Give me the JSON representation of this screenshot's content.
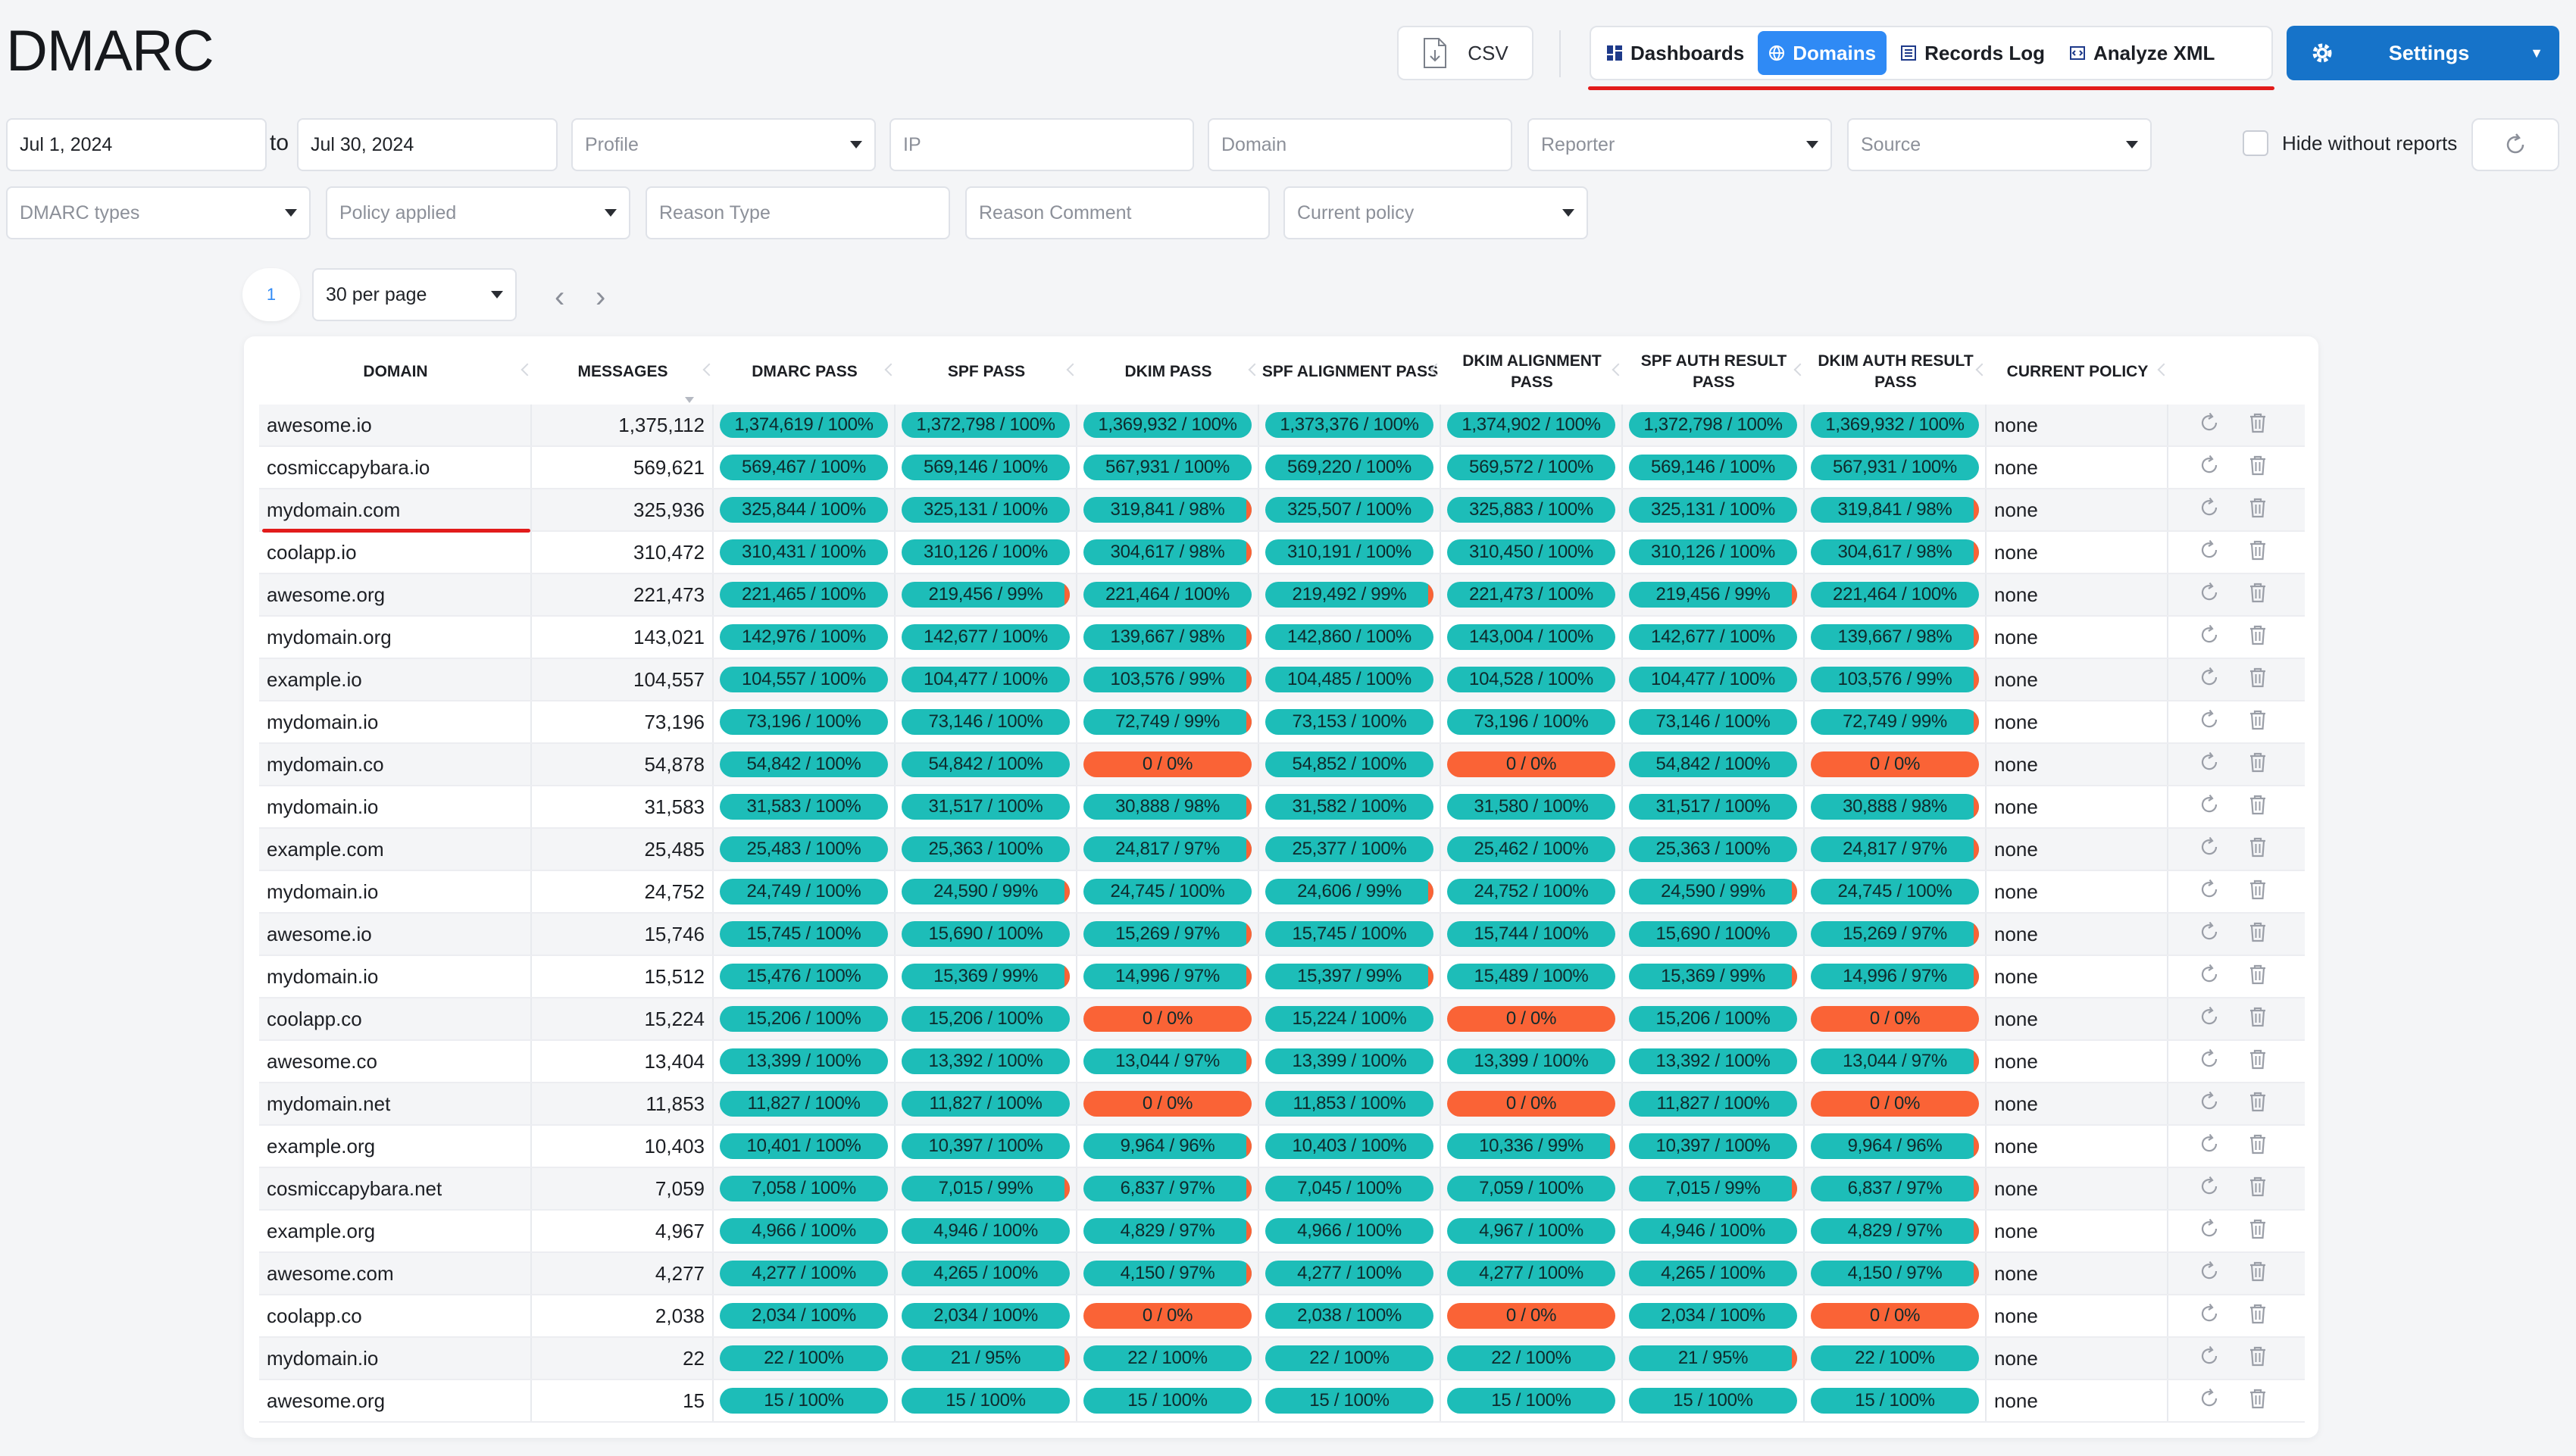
{
  "app": {
    "title": "DMARC"
  },
  "toolbar": {
    "csv_label": "CSV",
    "tabs": [
      {
        "label": "Dashboards",
        "icon": "dashboard-icon"
      },
      {
        "label": "Domains",
        "icon": "globe-icon"
      },
      {
        "label": "Records Log",
        "icon": "list-icon"
      },
      {
        "label": "Analyze XML",
        "icon": "xml-icon"
      }
    ],
    "active_tab": "Domains",
    "settings_label": "Settings"
  },
  "filters": {
    "date_from": "Jul 1, 2024",
    "to_label": "to",
    "date_to": "Jul 30, 2024",
    "profile_placeholder": "Profile",
    "ip_placeholder": "IP",
    "domain_placeholder": "Domain",
    "reporter_placeholder": "Reporter",
    "source_placeholder": "Source",
    "hide_without_reports_label": "Hide without reports",
    "dmarc_types_placeholder": "DMARC types",
    "policy_applied_placeholder": "Policy applied",
    "reason_type_placeholder": "Reason Type",
    "reason_comment_placeholder": "Reason Comment",
    "current_policy_placeholder": "Current policy"
  },
  "pager": {
    "current_page": "1",
    "per_page": "30 per page"
  },
  "table": {
    "headers": [
      "DOMAIN",
      "MESSAGES",
      "DMARC PASS",
      "SPF PASS",
      "DKIM PASS",
      "SPF ALIGNMENT PASS",
      "DKIM ALIGNMENT PASS",
      "SPF AUTH RESULT PASS",
      "DKIM AUTH RESULT PASS",
      "CURRENT POLICY"
    ],
    "rows": [
      {
        "domain": "awesome.io",
        "messages": "1,375,112",
        "stats": [
          "1,374,619 / 100%",
          "1,372,798 / 100%",
          "1,369,932 / 100%",
          "1,373,376 / 100%",
          "1,374,902 / 100%",
          "1,372,798 / 100%",
          "1,369,932 / 100%"
        ],
        "policy": "none"
      },
      {
        "domain": "cosmiccapybara.io",
        "messages": "569,621",
        "stats": [
          "569,467 / 100%",
          "569,146 / 100%",
          "567,931 / 100%",
          "569,220 / 100%",
          "569,572 / 100%",
          "569,146 / 100%",
          "567,931 / 100%"
        ],
        "policy": "none"
      },
      {
        "domain": "mydomain.com",
        "messages": "325,936",
        "stats": [
          "325,844 / 100%",
          "325,131 / 100%",
          "319,841 / 98%",
          "325,507 / 100%",
          "325,883 / 100%",
          "325,131 / 100%",
          "319,841 / 98%"
        ],
        "policy": "none"
      },
      {
        "domain": "coolapp.io",
        "messages": "310,472",
        "stats": [
          "310,431 / 100%",
          "310,126 / 100%",
          "304,617 / 98%",
          "310,191 / 100%",
          "310,450 / 100%",
          "310,126 / 100%",
          "304,617 / 98%"
        ],
        "policy": "none"
      },
      {
        "domain": "awesome.org",
        "messages": "221,473",
        "stats": [
          "221,465 / 100%",
          "219,456 / 99%",
          "221,464 / 100%",
          "219,492 / 99%",
          "221,473 / 100%",
          "219,456 / 99%",
          "221,464 / 100%"
        ],
        "policy": "none"
      },
      {
        "domain": "mydomain.org",
        "messages": "143,021",
        "stats": [
          "142,976 / 100%",
          "142,677 / 100%",
          "139,667 / 98%",
          "142,860 / 100%",
          "143,004 / 100%",
          "142,677 / 100%",
          "139,667 / 98%"
        ],
        "policy": "none"
      },
      {
        "domain": "example.io",
        "messages": "104,557",
        "stats": [
          "104,557 / 100%",
          "104,477 / 100%",
          "103,576 / 99%",
          "104,485 / 100%",
          "104,528 / 100%",
          "104,477 / 100%",
          "103,576 / 99%"
        ],
        "policy": "none"
      },
      {
        "domain": "mydomain.io",
        "messages": "73,196",
        "stats": [
          "73,196 / 100%",
          "73,146 / 100%",
          "72,749 / 99%",
          "73,153 / 100%",
          "73,196 / 100%",
          "73,146 / 100%",
          "72,749 / 99%"
        ],
        "policy": "none"
      },
      {
        "domain": "mydomain.co",
        "messages": "54,878",
        "stats": [
          "54,842 / 100%",
          "54,842 / 100%",
          "0 / 0%",
          "54,852 / 100%",
          "0 / 0%",
          "54,842 / 100%",
          "0 / 0%"
        ],
        "policy": "none"
      },
      {
        "domain": "mydomain.io",
        "messages": "31,583",
        "stats": [
          "31,583 / 100%",
          "31,517 / 100%",
          "30,888 / 98%",
          "31,582 / 100%",
          "31,580 / 100%",
          "31,517 / 100%",
          "30,888 / 98%"
        ],
        "policy": "none"
      },
      {
        "domain": "example.com",
        "messages": "25,485",
        "stats": [
          "25,483 / 100%",
          "25,363 / 100%",
          "24,817 / 97%",
          "25,377 / 100%",
          "25,462 / 100%",
          "25,363 / 100%",
          "24,817 / 97%"
        ],
        "policy": "none"
      },
      {
        "domain": "mydomain.io",
        "messages": "24,752",
        "stats": [
          "24,749 / 100%",
          "24,590 / 99%",
          "24,745 / 100%",
          "24,606 / 99%",
          "24,752 / 100%",
          "24,590 / 99%",
          "24,745 / 100%"
        ],
        "policy": "none"
      },
      {
        "domain": "awesome.io",
        "messages": "15,746",
        "stats": [
          "15,745 / 100%",
          "15,690 / 100%",
          "15,269 / 97%",
          "15,745 / 100%",
          "15,744 / 100%",
          "15,690 / 100%",
          "15,269 / 97%"
        ],
        "policy": "none"
      },
      {
        "domain": "mydomain.io",
        "messages": "15,512",
        "stats": [
          "15,476 / 100%",
          "15,369 / 99%",
          "14,996 / 97%",
          "15,397 / 99%",
          "15,489 / 100%",
          "15,369 / 99%",
          "14,996 / 97%"
        ],
        "policy": "none"
      },
      {
        "domain": "coolapp.co",
        "messages": "15,224",
        "stats": [
          "15,206 / 100%",
          "15,206 / 100%",
          "0 / 0%",
          "15,224 / 100%",
          "0 / 0%",
          "15,206 / 100%",
          "0 / 0%"
        ],
        "policy": "none"
      },
      {
        "domain": "awesome.co",
        "messages": "13,404",
        "stats": [
          "13,399 / 100%",
          "13,392 / 100%",
          "13,044 / 97%",
          "13,399 / 100%",
          "13,399 / 100%",
          "13,392 / 100%",
          "13,044 / 97%"
        ],
        "policy": "none"
      },
      {
        "domain": "mydomain.net",
        "messages": "11,853",
        "stats": [
          "11,827 / 100%",
          "11,827 / 100%",
          "0 / 0%",
          "11,853 / 100%",
          "0 / 0%",
          "11,827 / 100%",
          "0 / 0%"
        ],
        "policy": "none"
      },
      {
        "domain": "example.org",
        "messages": "10,403",
        "stats": [
          "10,401 / 100%",
          "10,397 / 100%",
          "9,964 / 96%",
          "10,403 / 100%",
          "10,336 / 99%",
          "10,397 / 100%",
          "9,964 / 96%"
        ],
        "policy": "none"
      },
      {
        "domain": "cosmiccapybara.net",
        "messages": "7,059",
        "stats": [
          "7,058 / 100%",
          "7,015 / 99%",
          "6,837 / 97%",
          "7,045 / 100%",
          "7,059 / 100%",
          "7,015 / 99%",
          "6,837 / 97%"
        ],
        "policy": "none"
      },
      {
        "domain": "example.org",
        "messages": "4,967",
        "stats": [
          "4,966 / 100%",
          "4,946 / 100%",
          "4,829 / 97%",
          "4,966 / 100%",
          "4,967 / 100%",
          "4,946 / 100%",
          "4,829 / 97%"
        ],
        "policy": "none"
      },
      {
        "domain": "awesome.com",
        "messages": "4,277",
        "stats": [
          "4,277 / 100%",
          "4,265 / 100%",
          "4,150 / 97%",
          "4,277 / 100%",
          "4,277 / 100%",
          "4,265 / 100%",
          "4,150 / 97%"
        ],
        "policy": "none"
      },
      {
        "domain": "coolapp.co",
        "messages": "2,038",
        "stats": [
          "2,034 / 100%",
          "2,034 / 100%",
          "0 / 0%",
          "2,038 / 100%",
          "0 / 0%",
          "2,034 / 100%",
          "0 / 0%"
        ],
        "policy": "none"
      },
      {
        "domain": "mydomain.io",
        "messages": "22",
        "stats": [
          "22 / 100%",
          "21 / 95%",
          "22 / 100%",
          "22 / 100%",
          "22 / 100%",
          "21 / 95%",
          "22 / 100%"
        ],
        "policy": "none"
      },
      {
        "domain": "awesome.org",
        "messages": "15",
        "stats": [
          "15 / 100%",
          "15 / 100%",
          "15 / 100%",
          "15 / 100%",
          "15 / 100%",
          "15 / 100%",
          "15 / 100%"
        ],
        "policy": "none"
      }
    ]
  },
  "colors": {
    "pass": "#1dbdb8",
    "fail": "#fa6336",
    "accent": "#2f8af5",
    "settings": "#1673c9",
    "highlight": "#e21b1b"
  }
}
